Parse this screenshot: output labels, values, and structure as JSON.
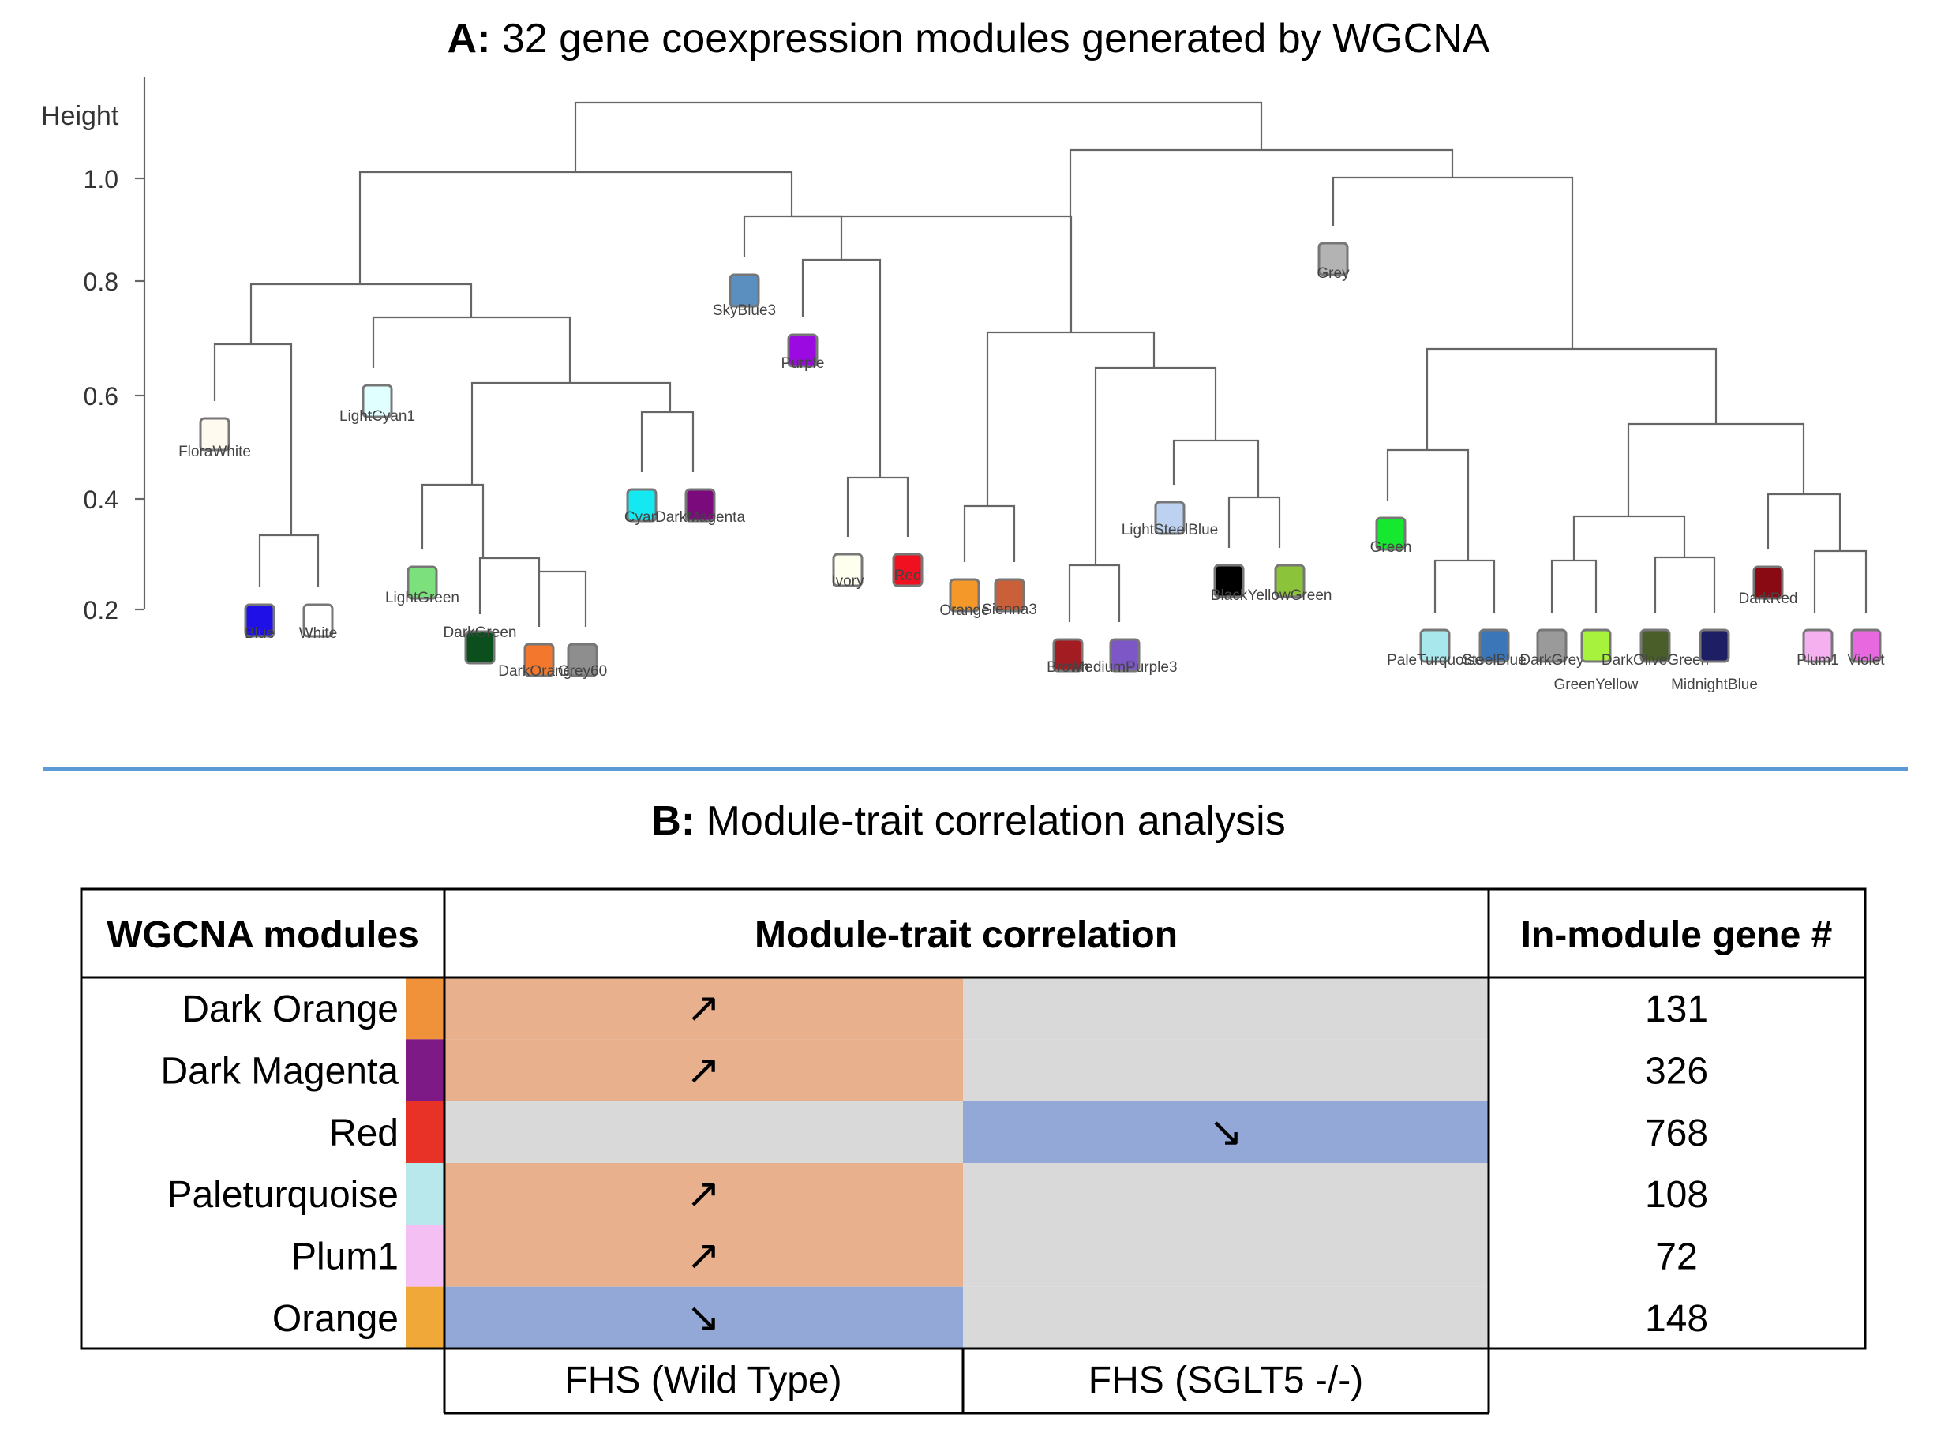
{
  "panel_a": {
    "title_bold": "A:",
    "title_rest": " 32 gene coexpression modules generated by WGCNA",
    "y_axis": {
      "label": "Height",
      "ticks": [
        "1.0",
        "0.8",
        "0.6",
        "0.4",
        "0.2"
      ]
    },
    "modules": [
      {
        "name": "FloraWhite",
        "color": "#FFFAF0"
      },
      {
        "name": "Blue",
        "color": "#1F10E8"
      },
      {
        "name": "White",
        "color": "#FFFFFF"
      },
      {
        "name": "LightCyan1",
        "color": "#E0FFFF"
      },
      {
        "name": "LightGreen",
        "color": "#7CE07C"
      },
      {
        "name": "DarkGreen",
        "color": "#0B4F1C"
      },
      {
        "name": "DarkOrange",
        "color": "#F3782E"
      },
      {
        "name": "Grey60",
        "color": "#8E8E8E"
      },
      {
        "name": "Cyan",
        "color": "#14E8F0"
      },
      {
        "name": "DarkMagenta",
        "color": "#7B0A7C"
      },
      {
        "name": "SkyBlue3",
        "color": "#5A8FC0"
      },
      {
        "name": "Purple",
        "color": "#9B0AE0"
      },
      {
        "name": "Ivory",
        "color": "#FFFFF0"
      },
      {
        "name": "Red",
        "color": "#F01020"
      },
      {
        "name": "Orange",
        "color": "#F4982A"
      },
      {
        "name": "Sienna3",
        "color": "#C9603A"
      },
      {
        "name": "Brown",
        "color": "#A21C22"
      },
      {
        "name": "MediumPurple3",
        "color": "#7E57C6"
      },
      {
        "name": "LightSteelBlue",
        "color": "#BCD2F0"
      },
      {
        "name": "Black",
        "color": "#000000"
      },
      {
        "name": "YellowGreen",
        "color": "#8BC43A"
      },
      {
        "name": "Grey",
        "color": "#B3B3B3"
      },
      {
        "name": "Green",
        "color": "#16E830"
      },
      {
        "name": "PaleTurquoise",
        "color": "#A8E8EC"
      },
      {
        "name": "SteelBlue",
        "color": "#3A76B8"
      },
      {
        "name": "DarkGrey",
        "color": "#9A9A9A"
      },
      {
        "name": "GreenYellow",
        "color": "#A6F23C"
      },
      {
        "name": "DarkOliveGreen",
        "color": "#4A5E2A"
      },
      {
        "name": "MidnightBlue",
        "color": "#1E1E64"
      },
      {
        "name": "DarkRed",
        "color": "#8A0A14"
      },
      {
        "name": "Plum1",
        "color": "#F5B0F0"
      },
      {
        "name": "Violet",
        "color": "#E868E0"
      }
    ]
  },
  "panel_b": {
    "title_bold": "B:",
    "title_rest": " Module-trait correlation analysis",
    "headers": {
      "modules": "WGCNA modules",
      "correlation": "Module-trait correlation",
      "gene_count": "In-module gene #"
    },
    "conditions": [
      "FHS (Wild Type)",
      "FHS (SGLT5 -/-)"
    ],
    "colors": {
      "up": "#E8B08C",
      "down": "#94A8D8",
      "neutral": "#D9D9D9"
    },
    "rows": [
      {
        "module": "Dark Orange",
        "swatch": "#F0923A",
        "wild_type": "up",
        "wild_type_symbol": "↗",
        "sglt5": "neutral",
        "sglt5_symbol": "",
        "genes": "131"
      },
      {
        "module": "Dark Magenta",
        "swatch": "#7E1A86",
        "wild_type": "up",
        "wild_type_symbol": "↗",
        "sglt5": "neutral",
        "sglt5_symbol": "",
        "genes": "326"
      },
      {
        "module": "Red",
        "swatch": "#E83228",
        "wild_type": "neutral",
        "wild_type_symbol": "",
        "sglt5": "down",
        "sglt5_symbol": "↘",
        "genes": "768"
      },
      {
        "module": "Paleturquoise",
        "swatch": "#B8E8EC",
        "wild_type": "up",
        "wild_type_symbol": "↗",
        "sglt5": "neutral",
        "sglt5_symbol": "",
        "genes": "108"
      },
      {
        "module": "Plum1",
        "swatch": "#F4C0F4",
        "wild_type": "up",
        "wild_type_symbol": "↗",
        "sglt5": "neutral",
        "sglt5_symbol": "",
        "genes": "72"
      },
      {
        "module": "Orange",
        "swatch": "#F0A838",
        "wild_type": "down",
        "wild_type_symbol": "↘",
        "sglt5": "neutral",
        "sglt5_symbol": "",
        "genes": "148"
      }
    ]
  }
}
